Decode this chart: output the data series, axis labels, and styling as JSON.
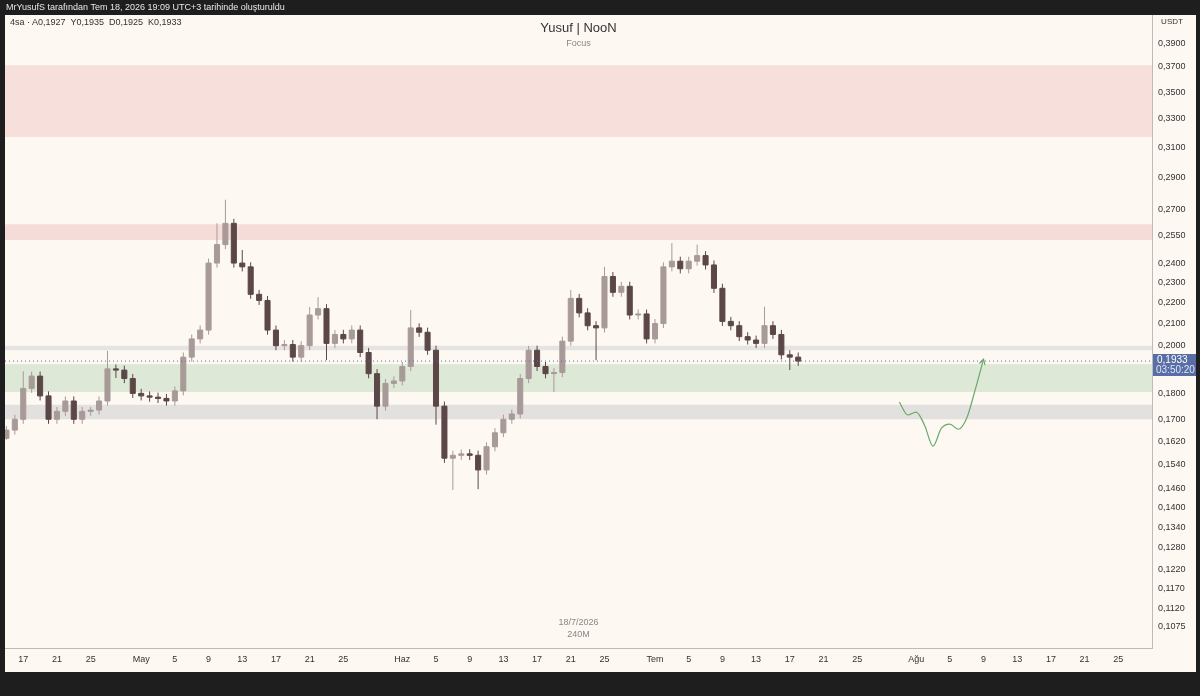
{
  "chart_data": {
    "type": "candlestick",
    "title": "Yusuf | NooN",
    "subtitle": "Focus",
    "ylabel": "USDT",
    "annotations": [
      "MrYusufS tarafından Tem 18, 2026 19:09 UTC+3 tarihinde oluşturuldu",
      "4sa · A0,1927  Y0,1935  D0,1925  K0,1933",
      "18/7/2026",
      "240M",
      "03:50:20"
    ],
    "x": [
      "2026-04-15",
      "2026-04-16",
      "2026-04-17",
      "2026-04-18",
      "2026-04-19",
      "2026-04-20",
      "2026-04-21",
      "2026-04-22",
      "2026-04-23",
      "2026-04-24",
      "2026-04-25",
      "2026-04-26",
      "2026-04-27",
      "2026-04-28",
      "2026-04-29",
      "2026-04-30",
      "2026-05-01",
      "2026-05-02",
      "2026-05-03",
      "2026-05-04",
      "2026-05-05",
      "2026-05-06",
      "2026-05-07",
      "2026-05-08",
      "2026-05-09",
      "2026-05-10",
      "2026-05-11",
      "2026-05-12",
      "2026-05-13",
      "2026-05-14",
      "2026-05-15",
      "2026-05-16",
      "2026-05-17",
      "2026-05-18",
      "2026-05-19",
      "2026-05-20",
      "2026-05-21",
      "2026-05-22",
      "2026-05-23",
      "2026-05-24",
      "2026-05-25",
      "2026-05-26",
      "2026-05-27",
      "2026-05-28",
      "2026-05-29",
      "2026-05-30",
      "2026-05-31",
      "2026-06-01",
      "2026-06-02",
      "2026-06-03",
      "2026-06-04",
      "2026-06-05",
      "2026-06-06",
      "2026-06-07",
      "2026-06-08",
      "2026-06-09",
      "2026-06-10",
      "2026-06-11",
      "2026-06-12",
      "2026-06-13",
      "2026-06-14",
      "2026-06-15",
      "2026-06-16",
      "2026-06-17",
      "2026-06-18",
      "2026-06-19",
      "2026-06-20",
      "2026-06-21",
      "2026-06-22",
      "2026-06-23",
      "2026-06-24",
      "2026-06-25",
      "2026-06-26",
      "2026-06-27",
      "2026-06-28",
      "2026-06-29",
      "2026-06-30",
      "2026-07-01",
      "2026-07-02",
      "2026-07-03",
      "2026-07-04",
      "2026-07-05",
      "2026-07-06",
      "2026-07-07",
      "2026-07-08",
      "2026-07-09",
      "2026-07-10",
      "2026-07-11",
      "2026-07-12",
      "2026-07-13",
      "2026-07-14",
      "2026-07-15",
      "2026-07-16",
      "2026-07-17",
      "2026-07-18"
    ],
    "ohlc": [
      [
        0.163,
        0.1675,
        0.1625,
        0.166
      ],
      [
        0.166,
        0.1717,
        0.1643,
        0.17
      ],
      [
        0.17,
        0.189,
        0.1683,
        0.182
      ],
      [
        0.182,
        0.1889,
        0.1802,
        0.187
      ],
      [
        0.187,
        0.1889,
        0.1772,
        0.179
      ],
      [
        0.179,
        0.1808,
        0.1683,
        0.17
      ],
      [
        0.17,
        0.1747,
        0.1683,
        0.173
      ],
      [
        0.173,
        0.1788,
        0.1713,
        0.177
      ],
      [
        0.177,
        0.1788,
        0.1683,
        0.17
      ],
      [
        0.17,
        0.1747,
        0.1683,
        0.173
      ],
      [
        0.173,
        0.1747,
        0.1713,
        0.1735
      ],
      [
        0.1735,
        0.1788,
        0.1718,
        0.177
      ],
      [
        0.177,
        0.1977,
        0.1752,
        0.19
      ],
      [
        0.19,
        0.1919,
        0.1862,
        0.1895
      ],
      [
        0.1895,
        0.1914,
        0.1841,
        0.186
      ],
      [
        0.186,
        0.1879,
        0.1782,
        0.18
      ],
      [
        0.18,
        0.1818,
        0.1772,
        0.179
      ],
      [
        0.179,
        0.1808,
        0.1767,
        0.1785
      ],
      [
        0.1785,
        0.1803,
        0.1762,
        0.178
      ],
      [
        0.178,
        0.1798,
        0.1752,
        0.177
      ],
      [
        0.177,
        0.1828,
        0.1752,
        0.181
      ],
      [
        0.181,
        0.197,
        0.1792,
        0.195
      ],
      [
        0.195,
        0.205,
        0.1931,
        0.203
      ],
      [
        0.203,
        0.2091,
        0.201,
        0.207
      ],
      [
        0.207,
        0.2424,
        0.2049,
        0.24
      ],
      [
        0.24,
        0.262,
        0.2376,
        0.25
      ],
      [
        0.25,
        0.276,
        0.2475,
        0.262
      ],
      [
        0.262,
        0.2646,
        0.2376,
        0.24
      ],
      [
        0.24,
        0.247,
        0.2356,
        0.238
      ],
      [
        0.238,
        0.2404,
        0.2218,
        0.224
      ],
      [
        0.224,
        0.2262,
        0.2188,
        0.221
      ],
      [
        0.221,
        0.2232,
        0.2049,
        0.207
      ],
      [
        0.207,
        0.2091,
        0.198,
        0.2
      ],
      [
        0.2,
        0.2025,
        0.198,
        0.2005
      ],
      [
        0.2005,
        0.2025,
        0.1931,
        0.195
      ],
      [
        0.195,
        0.202,
        0.1931,
        0.2
      ],
      [
        0.2,
        0.2178,
        0.198,
        0.214
      ],
      [
        0.214,
        0.2226,
        0.2119,
        0.217
      ],
      [
        0.217,
        0.2192,
        0.1937,
        0.201
      ],
      [
        0.201,
        0.207,
        0.199,
        0.205
      ],
      [
        0.205,
        0.2071,
        0.201,
        0.203
      ],
      [
        0.203,
        0.2091,
        0.201,
        0.207
      ],
      [
        0.207,
        0.2091,
        0.195,
        0.197
      ],
      [
        0.197,
        0.199,
        0.1861,
        0.188
      ],
      [
        0.188,
        0.1899,
        0.17,
        0.175
      ],
      [
        0.175,
        0.1858,
        0.1733,
        0.184
      ],
      [
        0.184,
        0.1869,
        0.1822,
        0.185
      ],
      [
        0.185,
        0.1929,
        0.1832,
        0.191
      ],
      [
        0.191,
        0.2164,
        0.1891,
        0.208
      ],
      [
        0.208,
        0.2101,
        0.2039,
        0.206
      ],
      [
        0.206,
        0.2081,
        0.196,
        0.198
      ],
      [
        0.198,
        0.2,
        0.168,
        0.175
      ],
      [
        0.175,
        0.1768,
        0.1544,
        0.156
      ],
      [
        0.156,
        0.1586,
        0.1454,
        0.157
      ],
      [
        0.157,
        0.159,
        0.1554,
        0.1575
      ],
      [
        0.1575,
        0.1591,
        0.1554,
        0.157
      ],
      [
        0.157,
        0.1586,
        0.1457,
        0.152
      ],
      [
        0.152,
        0.1616,
        0.1505,
        0.16
      ],
      [
        0.16,
        0.1667,
        0.1584,
        0.165
      ],
      [
        0.165,
        0.1717,
        0.1634,
        0.17
      ],
      [
        0.17,
        0.1737,
        0.1683,
        0.172
      ],
      [
        0.172,
        0.1879,
        0.1703,
        0.186
      ],
      [
        0.186,
        0.1999,
        0.1841,
        0.198
      ],
      [
        0.198,
        0.2,
        0.1891,
        0.191
      ],
      [
        0.191,
        0.1929,
        0.1861,
        0.188
      ],
      [
        0.188,
        0.1904,
        0.1806,
        0.1885
      ],
      [
        0.1885,
        0.204,
        0.1866,
        0.202
      ],
      [
        0.202,
        0.2261,
        0.2,
        0.222
      ],
      [
        0.222,
        0.2242,
        0.2129,
        0.215
      ],
      [
        0.215,
        0.2172,
        0.2069,
        0.209
      ],
      [
        0.209,
        0.2111,
        0.1937,
        0.208
      ],
      [
        0.208,
        0.238,
        0.2059,
        0.233
      ],
      [
        0.233,
        0.2353,
        0.2228,
        0.225
      ],
      [
        0.225,
        0.2303,
        0.2228,
        0.228
      ],
      [
        0.228,
        0.2303,
        0.2119,
        0.214
      ],
      [
        0.214,
        0.2166,
        0.2119,
        0.2145
      ],
      [
        0.2145,
        0.2166,
        0.201,
        0.203
      ],
      [
        0.203,
        0.2121,
        0.201,
        0.21
      ],
      [
        0.21,
        0.2404,
        0.2079,
        0.238
      ],
      [
        0.238,
        0.2508,
        0.2356,
        0.241
      ],
      [
        0.241,
        0.2434,
        0.2346,
        0.237
      ],
      [
        0.237,
        0.2434,
        0.2346,
        0.241
      ],
      [
        0.241,
        0.25,
        0.2386,
        0.244
      ],
      [
        0.244,
        0.2464,
        0.2366,
        0.239
      ],
      [
        0.239,
        0.2414,
        0.2247,
        0.227
      ],
      [
        0.227,
        0.2293,
        0.2089,
        0.211
      ],
      [
        0.211,
        0.2131,
        0.2069,
        0.209
      ],
      [
        0.209,
        0.2111,
        0.202,
        0.204
      ],
      [
        0.204,
        0.206,
        0.2005,
        0.2025
      ],
      [
        0.2025,
        0.2045,
        0.199,
        0.201
      ],
      [
        0.201,
        0.218,
        0.199,
        0.209
      ],
      [
        0.209,
        0.2111,
        0.203,
        0.205
      ],
      [
        0.205,
        0.2071,
        0.194,
        0.196
      ],
      [
        0.196,
        0.198,
        0.1895,
        0.195
      ],
      [
        0.195,
        0.197,
        0.1913,
        0.1933
      ]
    ],
    "colors": [
      "#a89a98",
      "#a89a98",
      "#a89a98",
      "#a89a98",
      "#5b4747",
      "#5b4747",
      "#a89a98",
      "#a89a98",
      "#5b4747",
      "#a89a98",
      "#a89a98",
      "#a89a98",
      "#a89a98",
      "#5b4747",
      "#5b4747",
      "#5b4747",
      "#5b4747",
      "#5b4747",
      "#5b4747",
      "#5b4747",
      "#a89a98",
      "#a89a98",
      "#a89a98",
      "#a89a98",
      "#a89a98",
      "#a89a98",
      "#a89a98",
      "#5b4747",
      "#5b4747",
      "#5b4747",
      "#5b4747",
      "#5b4747",
      "#5b4747",
      "#a89a98",
      "#5b4747",
      "#a89a98",
      "#a89a98",
      "#a89a98",
      "#5b4747",
      "#a89a98",
      "#5b4747",
      "#a89a98",
      "#5b4747",
      "#5b4747",
      "#5b4747",
      "#a89a98",
      "#a89a98",
      "#a89a98",
      "#a89a98",
      "#5b4747",
      "#5b4747",
      "#5b4747",
      "#5b4747",
      "#a89a98",
      "#a89a98",
      "#5b4747",
      "#5b4747",
      "#a89a98",
      "#a89a98",
      "#a89a98",
      "#a89a98",
      "#a89a98",
      "#a89a98",
      "#5b4747",
      "#5b4747",
      "#a89a98",
      "#a89a98",
      "#a89a98",
      "#5b4747",
      "#5b4747",
      "#5b4747",
      "#a89a98",
      "#5b4747",
      "#a89a98",
      "#5b4747",
      "#a89a98",
      "#5b4747",
      "#a89a98",
      "#a89a98",
      "#a89a98",
      "#5b4747",
      "#a89a98",
      "#a89a98",
      "#5b4747",
      "#5b4747",
      "#5b4747",
      "#5b4747",
      "#5b4747",
      "#5b4747",
      "#5b4747",
      "#a89a98",
      "#5b4747",
      "#5b4747",
      "#5b4747",
      "#5b4747"
    ],
    "series": [
      {
        "type": "line",
        "color": "#6aa86a",
        "marker": "none",
        "x": [
          "2026-07-30",
          "2026-07-31",
          "2026-08-01",
          "2026-08-02",
          "2026-08-03",
          "2026-08-04",
          "2026-08-05",
          "2026-08-06",
          "2026-08-07",
          "2026-08-08",
          "2026-08-09"
        ],
        "values": [
          0.1766,
          0.1716,
          0.1727,
          0.1678,
          0.1602,
          0.1667,
          0.1682,
          0.1663,
          0.1704,
          0.1813,
          0.1941
        ]
      }
    ],
    "log": "y",
    "xlim": [
      "2026-04-14T20:00",
      "2026-08-29T00:00"
    ],
    "xticks": [
      {
        "value": "2026-04-17",
        "label": "17"
      },
      {
        "value": "2026-04-21",
        "label": "21"
      },
      {
        "value": "2026-04-25",
        "label": "25"
      },
      {
        "value": "2026-05-01",
        "label": "May"
      },
      {
        "value": "2026-05-05",
        "label": "5"
      },
      {
        "value": "2026-05-09",
        "label": "9"
      },
      {
        "value": "2026-05-13",
        "label": "13"
      },
      {
        "value": "2026-05-17",
        "label": "17"
      },
      {
        "value": "2026-05-21",
        "label": "21"
      },
      {
        "value": "2026-05-25",
        "label": "25"
      },
      {
        "value": "2026-06-01",
        "label": "Haz"
      },
      {
        "value": "2026-06-05",
        "label": "5"
      },
      {
        "value": "2026-06-09",
        "label": "9"
      },
      {
        "value": "2026-06-13",
        "label": "13"
      },
      {
        "value": "2026-06-17",
        "label": "17"
      },
      {
        "value": "2026-06-21",
        "label": "21"
      },
      {
        "value": "2026-06-25",
        "label": "25"
      },
      {
        "value": "2026-07-01",
        "label": "Tem"
      },
      {
        "value": "2026-07-05",
        "label": "5"
      },
      {
        "value": "2026-07-09",
        "label": "9"
      },
      {
        "value": "2026-07-13",
        "label": "13"
      },
      {
        "value": "2026-07-17",
        "label": "17"
      },
      {
        "value": "2026-07-21",
        "label": "21"
      },
      {
        "value": "2026-07-25",
        "label": "25"
      },
      {
        "value": "2026-08-01",
        "label": "Ağu"
      },
      {
        "value": "2026-08-05",
        "label": "5"
      },
      {
        "value": "2026-08-09",
        "label": "9"
      },
      {
        "value": "2026-08-13",
        "label": "13"
      },
      {
        "value": "2026-08-17",
        "label": "17"
      },
      {
        "value": "2026-08-21",
        "label": "21"
      },
      {
        "value": "2026-08-25",
        "label": "25"
      }
    ],
    "ylim": [
      0.1026,
      0.415
    ],
    "yticks": [
      {
        "value": 0.39,
        "label": "0,3900"
      },
      {
        "value": 0.37,
        "label": "0,3700"
      },
      {
        "value": 0.35,
        "label": "0,3500"
      },
      {
        "value": 0.33,
        "label": "0,3300"
      },
      {
        "value": 0.31,
        "label": "0,3100"
      },
      {
        "value": 0.29,
        "label": "0,2900"
      },
      {
        "value": 0.27,
        "label": "0,2700"
      },
      {
        "value": 0.255,
        "label": "0,2550"
      },
      {
        "value": 0.24,
        "label": "0,2400"
      },
      {
        "value": 0.23,
        "label": "0,2300"
      },
      {
        "value": 0.22,
        "label": "0,2200"
      },
      {
        "value": 0.21,
        "label": "0,2100"
      },
      {
        "value": 0.2,
        "label": "0,2000"
      },
      {
        "value": 0.18,
        "label": "0,1800"
      },
      {
        "value": 0.17,
        "label": "0,1700"
      },
      {
        "value": 0.162,
        "label": "0,1620"
      },
      {
        "value": 0.154,
        "label": "0,1540"
      },
      {
        "value": 0.146,
        "label": "0,1460"
      },
      {
        "value": 0.14,
        "label": "0,1400"
      },
      {
        "value": 0.134,
        "label": "0,1340"
      },
      {
        "value": 0.128,
        "label": "0,1280"
      },
      {
        "value": 0.122,
        "label": "0,1220"
      },
      {
        "value": 0.117,
        "label": "0,1170"
      },
      {
        "value": 0.112,
        "label": "0,1120"
      },
      {
        "value": 0.1075,
        "label": "0,1075"
      }
    ],
    "bands": [
      {
        "axis": "y",
        "from": 0.317,
        "to": 0.3715,
        "color": "#f7dfdb"
      },
      {
        "axis": "y",
        "from": 0.2525,
        "to": 0.2615,
        "color": "#f6dcd8"
      },
      {
        "axis": "y",
        "from": 0.1805,
        "to": 0.192,
        "color": "#dde9d6"
      },
      {
        "axis": "y",
        "from": 0.17,
        "to": 0.1755,
        "color": "#e3e1df"
      },
      {
        "axis": "y",
        "from": 0.198,
        "to": 0.2,
        "color": "#e6e4e2"
      }
    ],
    "ref_lines": [
      {
        "axis": "y",
        "value": 0.1933,
        "label": "0,1933",
        "color": "#5a6ea6",
        "line_style": "dotted"
      }
    ],
    "grid": false,
    "legend": false
  }
}
